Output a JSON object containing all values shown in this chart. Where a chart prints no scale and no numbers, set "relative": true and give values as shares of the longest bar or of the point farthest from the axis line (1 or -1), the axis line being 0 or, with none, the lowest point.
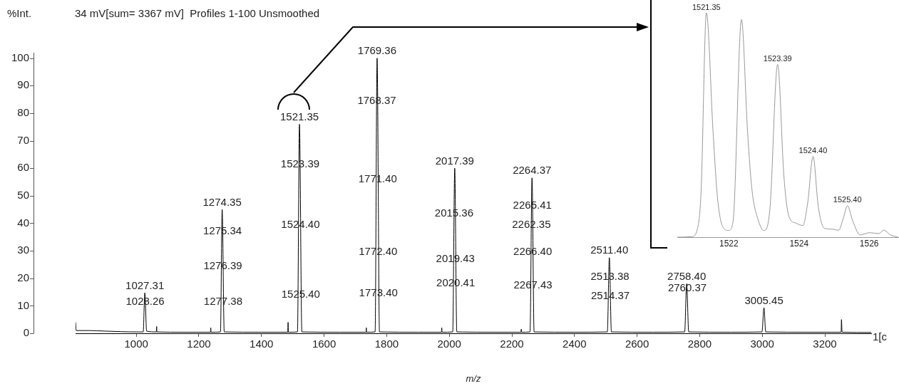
{
  "chart_data": [
    {
      "type": "line",
      "title": "34 mV[sum= 3367 mV]  Profiles 1-100 Unsmoothed",
      "xlabel": "m/z",
      "ylabel": "%Int.",
      "color": "#000000",
      "x": [
        806,
        808,
        850,
        900,
        950,
        1000,
        1022,
        1027.31,
        1033,
        1064,
        1065,
        1066,
        1150,
        1237,
        1238,
        1239,
        1269,
        1274.35,
        1281,
        1400,
        1484,
        1485,
        1486,
        1515,
        1521.35,
        1529,
        1650,
        1734,
        1735,
        1736,
        1763,
        1769.36,
        1777,
        1900,
        1975,
        1976,
        1977,
        2011,
        2017.39,
        2024,
        2150,
        2229,
        2230,
        2231,
        2258,
        2264.37,
        2271,
        2400,
        2505,
        2511.4,
        2518,
        2650,
        2752,
        2758.4,
        2765,
        2900,
        2999,
        3005.45,
        3011,
        3150,
        3252,
        3253,
        3255,
        3348
      ],
      "values": [
        4,
        1,
        1,
        0.8,
        0.6,
        0.5,
        0.5,
        14.7,
        0.8,
        0.5,
        2.5,
        0.5,
        0.4,
        0.4,
        2,
        0.4,
        0.5,
        45,
        0.5,
        0.4,
        0.4,
        4,
        0.4,
        0.5,
        76,
        0.5,
        0.4,
        0.4,
        2,
        0.4,
        0.5,
        100,
        0.5,
        0.4,
        0.4,
        2,
        0.4,
        0.5,
        60,
        0.5,
        0.4,
        0.4,
        1.5,
        0.4,
        0.5,
        56.5,
        0.5,
        0.4,
        0.5,
        27.5,
        0.5,
        0.4,
        0.5,
        18,
        0.5,
        0.4,
        0.5,
        9.3,
        0.5,
        0.4,
        0.4,
        5,
        0.4,
        0.3
      ],
      "xlim": [
        806,
        3348
      ],
      "xticks": [
        1000,
        1200,
        1400,
        1600,
        1800,
        2000,
        2200,
        2400,
        2600,
        2800,
        3000,
        3200
      ],
      "ylim": [
        0,
        102
      ],
      "yticks": [
        0,
        10,
        20,
        30,
        40,
        50,
        60,
        70,
        80,
        90,
        100
      ],
      "grid": false,
      "annotations": [
        {
          "text": "1027.31",
          "x": 1027.31,
          "y": 14.7
        },
        {
          "text": "1028.26",
          "x": 1028.26,
          "y": 8.9
        },
        {
          "text": "1274.35",
          "x": 1274.35,
          "y": 45
        },
        {
          "text": "1275.34",
          "x": 1275.34,
          "y": 34.6
        },
        {
          "text": "1276.39",
          "x": 1276.39,
          "y": 22
        },
        {
          "text": "1277.38",
          "x": 1277.38,
          "y": 9
        },
        {
          "text": "1521.35",
          "x": 1521.35,
          "y": 76
        },
        {
          "text": "1523.39",
          "x": 1523.39,
          "y": 59
        },
        {
          "text": "1524.40",
          "x": 1524.4,
          "y": 37
        },
        {
          "text": "1525.40",
          "x": 1525.4,
          "y": 11.5
        },
        {
          "text": "1769.36",
          "x": 1769.36,
          "y": 100
        },
        {
          "text": "1768.37",
          "x": 1768.37,
          "y": 82
        },
        {
          "text": "1771.40",
          "x": 1771.4,
          "y": 53.5
        },
        {
          "text": "1772.40",
          "x": 1772.4,
          "y": 27
        },
        {
          "text": "1773.40",
          "x": 1773.4,
          "y": 12
        },
        {
          "text": "2017.39",
          "x": 2017.39,
          "y": 60
        },
        {
          "text": "2015.36",
          "x": 2015.36,
          "y": 41
        },
        {
          "text": "2019.43",
          "x": 2019.43,
          "y": 24.5
        },
        {
          "text": "2020.41",
          "x": 2020.41,
          "y": 15.6
        },
        {
          "text": "2264.37",
          "x": 2264.37,
          "y": 56.5
        },
        {
          "text": "2265.41",
          "x": 2265.41,
          "y": 44
        },
        {
          "text": "2262.35",
          "x": 2262.35,
          "y": 37
        },
        {
          "text": "2266.40",
          "x": 2266.4,
          "y": 27
        },
        {
          "text": "2267.43",
          "x": 2267.43,
          "y": 15
        },
        {
          "text": "2511.40",
          "x": 2511.4,
          "y": 27.5
        },
        {
          "text": "2513.38",
          "x": 2513.38,
          "y": 18
        },
        {
          "text": "2514.37",
          "x": 2514.37,
          "y": 11
        },
        {
          "text": "2758.40",
          "x": 2758.4,
          "y": 18
        },
        {
          "text": "2760.37",
          "x": 2760.37,
          "y": 14
        },
        {
          "text": "3005.45",
          "x": 3005.45,
          "y": 9.3
        },
        "1[c"
      ]
    },
    {
      "type": "line",
      "relative": true,
      "color": "#999999",
      "x": [
        1520.53,
        1520.94,
        1521.11,
        1521.21,
        1521.36,
        1521.55,
        1521.68,
        1521.85,
        1521.99,
        1522.12,
        1522.36,
        1522.53,
        1522.66,
        1522.83,
        1523.0,
        1523.17,
        1523.39,
        1523.57,
        1523.71,
        1523.91,
        1524.11,
        1524.25,
        1524.4,
        1524.55,
        1524.72,
        1524.93,
        1525.13,
        1525.26,
        1525.38,
        1525.53,
        1525.74,
        1526.01,
        1526.28,
        1526.41,
        1526.61,
        1526.82
      ],
      "values": [
        0,
        0.002,
        0.04,
        0.21,
        1,
        0.47,
        0.17,
        0.04,
        0.03,
        0.07,
        0.97,
        0.48,
        0.21,
        0.08,
        0.03,
        0.125,
        0.77,
        0.27,
        0.094,
        0.0625,
        0.052,
        0.156,
        0.36,
        0.135,
        0.04,
        0.036,
        0.031,
        0.083,
        0.14,
        0.073,
        0.01,
        0.02,
        0.016,
        0.031,
        0.01,
        0
      ],
      "xlim": [
        1520.53,
        1526.85
      ],
      "xticks": [
        1522,
        1524,
        1526
      ],
      "annotations": [
        {
          "text": "1521.35",
          "x": 1521.36,
          "y": 1
        },
        {
          "text": "1523.39",
          "x": 1523.39,
          "y": 0.77
        },
        {
          "text": "1524.40",
          "x": 1524.4,
          "y": 0.36
        },
        {
          "text": "1525.40",
          "x": 1525.38,
          "y": 0.14
        }
      ]
    }
  ]
}
